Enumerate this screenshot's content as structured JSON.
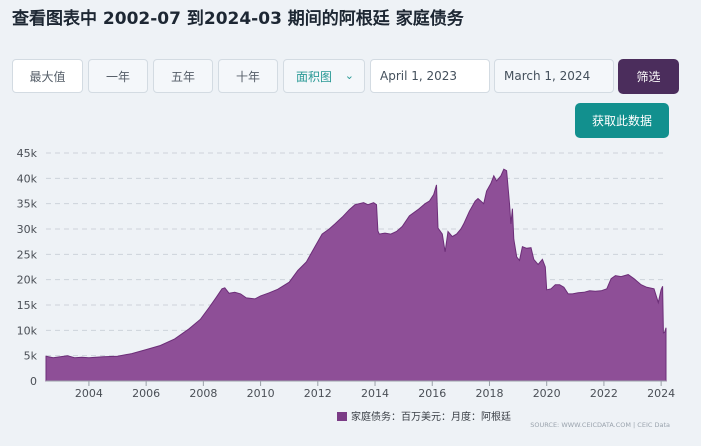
{
  "header": {
    "title": "查看图表中 2002-07 到2024-03 期间的阿根廷 家庭债务"
  },
  "controls": {
    "max_label": "最大值",
    "one_year_label": "一年",
    "five_year_label": "五年",
    "ten_year_label": "十年",
    "chart_type_value": "面积图",
    "start_date": "April 1, 2023",
    "end_date": "March 1, 2024",
    "filter_label": "筛选",
    "fetch_label": "获取此数据"
  },
  "colors": {
    "area_fill": "#8e4f97",
    "area_stroke": "#6c2e78",
    "legend_swatch": "#7b3c86",
    "filter_button": "#4b2d5c",
    "fetch_button": "#12908e",
    "chart_type_text": "#2a9a96"
  },
  "icons": {
    "dropdown": "chevron-down-icon"
  },
  "chart_data": {
    "type": "area",
    "title": "",
    "xlabel": "",
    "ylabel": "",
    "ylim": [
      0,
      45000
    ],
    "xlim": [
      2002.5,
      2024.17
    ],
    "grid": true,
    "legend_position": "bottom",
    "yticks": [
      0,
      5000,
      10000,
      15000,
      20000,
      25000,
      30000,
      35000,
      40000,
      45000
    ],
    "ytick_labels": [
      "0",
      "5k",
      "10k",
      "15k",
      "20k",
      "25k",
      "30k",
      "35k",
      "40k",
      "45k"
    ],
    "xticks": [
      2004,
      2006,
      2008,
      2010,
      2012,
      2014,
      2016,
      2018,
      2020,
      2022,
      2024
    ],
    "xtick_labels": [
      "2004",
      "2006",
      "2008",
      "2010",
      "2012",
      "2014",
      "2016",
      "2018",
      "2020",
      "2022",
      "2024"
    ],
    "source": "SOURCE: WWW.CEICDATA.COM | CEIC Data",
    "series": [
      {
        "name": "家庭债务：百万美元：月度：阿根廷",
        "points": [
          [
            2002.5,
            4900
          ],
          [
            2002.75,
            4600
          ],
          [
            2003.0,
            4800
          ],
          [
            2003.25,
            5000
          ],
          [
            2003.5,
            4600
          ],
          [
            2003.75,
            4700
          ],
          [
            2004.0,
            4600
          ],
          [
            2004.5,
            4800
          ],
          [
            2005.0,
            4900
          ],
          [
            2005.5,
            5400
          ],
          [
            2006.0,
            6200
          ],
          [
            2006.5,
            7000
          ],
          [
            2007.0,
            8300
          ],
          [
            2007.5,
            10300
          ],
          [
            2007.9,
            12200
          ],
          [
            2008.2,
            14500
          ],
          [
            2008.45,
            16500
          ],
          [
            2008.65,
            18200
          ],
          [
            2008.75,
            18400
          ],
          [
            2008.9,
            17300
          ],
          [
            2009.1,
            17500
          ],
          [
            2009.3,
            17200
          ],
          [
            2009.5,
            16400
          ],
          [
            2009.8,
            16200
          ],
          [
            2010.0,
            16800
          ],
          [
            2010.3,
            17400
          ],
          [
            2010.6,
            18100
          ],
          [
            2011.0,
            19500
          ],
          [
            2011.3,
            21800
          ],
          [
            2011.6,
            23500
          ],
          [
            2011.9,
            26500
          ],
          [
            2012.15,
            29000
          ],
          [
            2012.4,
            30000
          ],
          [
            2012.6,
            31000
          ],
          [
            2012.85,
            32300
          ],
          [
            2013.1,
            33800
          ],
          [
            2013.3,
            34800
          ],
          [
            2013.6,
            35200
          ],
          [
            2013.75,
            34800
          ],
          [
            2013.95,
            35200
          ],
          [
            2014.05,
            34800
          ],
          [
            2014.1,
            29600
          ],
          [
            2014.15,
            29000
          ],
          [
            2014.35,
            29200
          ],
          [
            2014.55,
            29000
          ],
          [
            2014.75,
            29500
          ],
          [
            2014.95,
            30500
          ],
          [
            2015.2,
            32600
          ],
          [
            2015.5,
            33800
          ],
          [
            2015.75,
            35000
          ],
          [
            2015.9,
            35500
          ],
          [
            2016.05,
            36800
          ],
          [
            2016.15,
            38700
          ],
          [
            2016.2,
            30200
          ],
          [
            2016.35,
            29000
          ],
          [
            2016.45,
            25500
          ],
          [
            2016.55,
            29500
          ],
          [
            2016.7,
            28500
          ],
          [
            2016.85,
            29000
          ],
          [
            2017.0,
            30000
          ],
          [
            2017.1,
            31000
          ],
          [
            2017.3,
            33500
          ],
          [
            2017.5,
            35500
          ],
          [
            2017.6,
            36000
          ],
          [
            2017.7,
            35500
          ],
          [
            2017.8,
            35000
          ],
          [
            2017.9,
            37500
          ],
          [
            2018.05,
            39000
          ],
          [
            2018.15,
            40500
          ],
          [
            2018.25,
            39500
          ],
          [
            2018.4,
            40500
          ],
          [
            2018.5,
            41800
          ],
          [
            2018.6,
            41500
          ],
          [
            2018.7,
            35000
          ],
          [
            2018.75,
            31000
          ],
          [
            2018.8,
            34000
          ],
          [
            2018.85,
            28000
          ],
          [
            2018.95,
            24500
          ],
          [
            2019.05,
            23800
          ],
          [
            2019.15,
            26500
          ],
          [
            2019.3,
            26200
          ],
          [
            2019.45,
            26300
          ],
          [
            2019.55,
            24000
          ],
          [
            2019.7,
            23000
          ],
          [
            2019.85,
            24000
          ],
          [
            2019.95,
            22500
          ],
          [
            2020.0,
            18000
          ],
          [
            2020.15,
            18200
          ],
          [
            2020.3,
            19000
          ],
          [
            2020.45,
            19000
          ],
          [
            2020.6,
            18500
          ],
          [
            2020.75,
            17200
          ],
          [
            2020.9,
            17200
          ],
          [
            2021.1,
            17400
          ],
          [
            2021.3,
            17500
          ],
          [
            2021.5,
            17800
          ],
          [
            2021.7,
            17700
          ],
          [
            2021.9,
            17800
          ],
          [
            2022.1,
            18200
          ],
          [
            2022.25,
            20200
          ],
          [
            2022.4,
            20800
          ],
          [
            2022.6,
            20600
          ],
          [
            2022.85,
            21000
          ],
          [
            2023.05,
            20200
          ],
          [
            2023.3,
            19000
          ],
          [
            2023.5,
            18500
          ],
          [
            2023.75,
            18200
          ],
          [
            2023.9,
            15500
          ],
          [
            2024.0,
            18000
          ],
          [
            2024.05,
            18700
          ],
          [
            2024.08,
            9500
          ],
          [
            2024.12,
            9600
          ],
          [
            2024.17,
            10500
          ]
        ]
      }
    ]
  }
}
